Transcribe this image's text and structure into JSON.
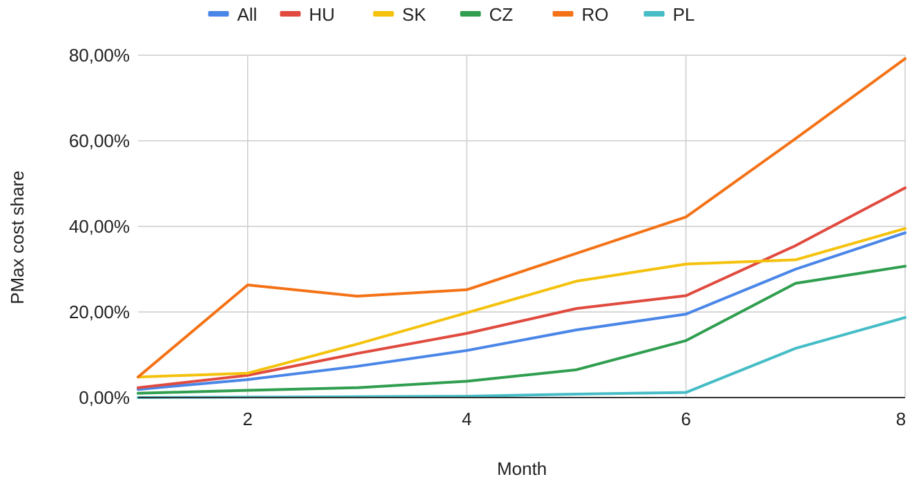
{
  "chart_data": {
    "type": "line",
    "title": "",
    "xlabel": "Month",
    "ylabel": "PMax cost share",
    "x": [
      1,
      2,
      3,
      4,
      5,
      6,
      7,
      8
    ],
    "xlim": [
      1,
      8
    ],
    "ylim": [
      0,
      80
    ],
    "x_ticks": [
      2,
      4,
      6,
      8
    ],
    "x_tick_labels": [
      "2",
      "4",
      "6",
      "8"
    ],
    "y_ticks": [
      0,
      20,
      40,
      60,
      80
    ],
    "y_tick_labels": [
      "0,00%",
      "20,00%",
      "40,00%",
      "60,00%",
      "80,00%"
    ],
    "grid": true,
    "legend_position": "top",
    "series": [
      {
        "name": "All",
        "color": "#4a86e8",
        "values": [
          1.9,
          4.2,
          7.3,
          11.0,
          15.8,
          19.5,
          30.0,
          38.5
        ]
      },
      {
        "name": "HU",
        "color": "#e04a3f",
        "values": [
          2.3,
          5.2,
          10.3,
          15.0,
          20.8,
          23.8,
          35.5,
          49.0
        ]
      },
      {
        "name": "SK",
        "color": "#f4c20d",
        "values": [
          4.8,
          5.7,
          12.5,
          19.8,
          27.2,
          31.2,
          32.2,
          39.5
        ]
      },
      {
        "name": "CZ",
        "color": "#2f9e4f",
        "values": [
          1.0,
          1.7,
          2.3,
          3.8,
          6.5,
          13.3,
          26.7,
          30.7
        ]
      },
      {
        "name": "RO",
        "color": "#f47216",
        "values": [
          4.8,
          26.3,
          23.7,
          25.2,
          33.7,
          42.2,
          60.5,
          79.2
        ]
      },
      {
        "name": "PL",
        "color": "#46bdc6",
        "values": [
          0.0,
          0.1,
          0.2,
          0.3,
          0.8,
          1.2,
          11.5,
          18.7
        ]
      }
    ]
  }
}
